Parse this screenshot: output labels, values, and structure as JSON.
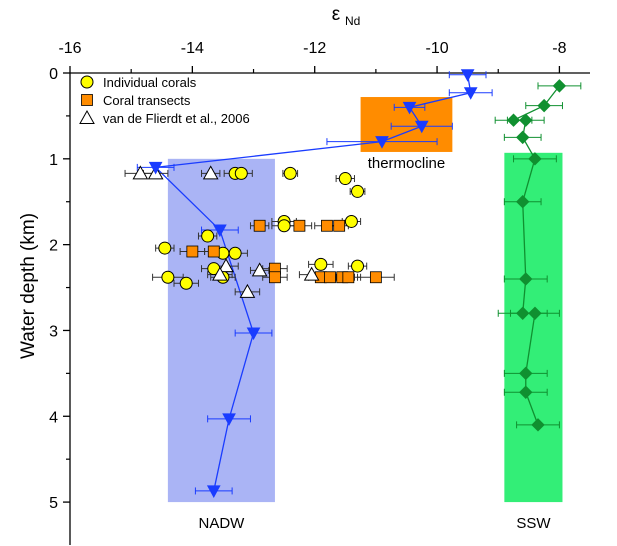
{
  "chart_data": {
    "type": "scatter",
    "x_title_symbol": "ε",
    "x_title_subscript": "Nd",
    "ylabel": "Water depth (km)",
    "xlim": [
      -16,
      -7.5
    ],
    "ylim": [
      0,
      5.5
    ],
    "x_ticks": [
      -16,
      -14,
      -12,
      -10,
      -8
    ],
    "y_ticks": [
      0,
      1,
      2,
      3,
      4,
      5
    ],
    "x_axis_position": "top",
    "y_axis_reversed": true,
    "grid": false,
    "legend_position": "top-left",
    "legend": [
      {
        "label": "Individual corals",
        "marker": "circle",
        "color": "#ffff00"
      },
      {
        "label": "Coral transects",
        "marker": "square",
        "color": "#ff8c00"
      },
      {
        "label": "van de Flierdt et al., 2006",
        "marker": "triangle",
        "color": "#ffffff"
      }
    ],
    "regions": [
      {
        "label": "NADW",
        "x": [
          -14.4,
          -12.65
        ],
        "y": [
          1.0,
          5.0
        ],
        "color": "#aab4f5"
      },
      {
        "label": "thermocline",
        "x": [
          -11.25,
          -9.75
        ],
        "y": [
          0.28,
          0.92
        ],
        "color": "#ff8c00"
      },
      {
        "label": "SSW",
        "x": [
          -8.9,
          -7.95
        ],
        "y": [
          0.93,
          5.0
        ],
        "color": "#33ee77"
      }
    ],
    "series": [
      {
        "marker": "circle",
        "color": "#ffff00",
        "points": [
          {
            "x": -13.3,
            "y": 1.17,
            "err": 0.18
          },
          {
            "x": -13.2,
            "y": 1.17,
            "err": 0.18
          },
          {
            "x": -12.4,
            "y": 1.17,
            "err": 0.12
          },
          {
            "x": -11.5,
            "y": 1.23,
            "err": 0.15
          },
          {
            "x": -11.3,
            "y": 1.38,
            "err": 0.12
          },
          {
            "x": -12.5,
            "y": 1.73,
            "err": 0.2
          },
          {
            "x": -12.5,
            "y": 1.78,
            "err": 0.2
          },
          {
            "x": -11.4,
            "y": 1.73,
            "err": 0.15
          },
          {
            "x": -13.75,
            "y": 1.9,
            "err": 0.15
          },
          {
            "x": -14.45,
            "y": 2.04,
            "err": 0.15
          },
          {
            "x": -13.5,
            "y": 2.1,
            "err": 0.2
          },
          {
            "x": -13.3,
            "y": 2.1,
            "err": 0.2
          },
          {
            "x": -13.65,
            "y": 2.28,
            "err": 0.2
          },
          {
            "x": -13.5,
            "y": 2.38,
            "err": 0.2
          },
          {
            "x": -14.4,
            "y": 2.38,
            "err": 0.25
          },
          {
            "x": -14.1,
            "y": 2.45,
            "err": 0.2
          },
          {
            "x": -11.9,
            "y": 2.23,
            "err": 0.2
          },
          {
            "x": -11.3,
            "y": 2.25,
            "err": 0.15
          }
        ]
      },
      {
        "marker": "square",
        "color": "#ff8c00",
        "points": [
          {
            "x": -12.9,
            "y": 1.78,
            "err": 0.15
          },
          {
            "x": -12.25,
            "y": 1.78,
            "err": 0.2
          },
          {
            "x": -11.8,
            "y": 1.78,
            "err": 0.2
          },
          {
            "x": -11.6,
            "y": 1.78,
            "err": 0.15
          },
          {
            "x": -14.0,
            "y": 2.08,
            "err": 0.2
          },
          {
            "x": -13.65,
            "y": 2.08,
            "err": 0.15
          },
          {
            "x": -12.65,
            "y": 2.28,
            "err": 0.2
          },
          {
            "x": -12.65,
            "y": 2.38,
            "err": 0.2
          },
          {
            "x": -11.9,
            "y": 2.38,
            "err": 0.2
          },
          {
            "x": -11.75,
            "y": 2.38,
            "err": 0.2
          },
          {
            "x": -11.55,
            "y": 2.38,
            "err": 0.2
          },
          {
            "x": -11.45,
            "y": 2.38,
            "err": 0.2
          },
          {
            "x": -11.0,
            "y": 2.38,
            "err": 0.3
          }
        ]
      },
      {
        "marker": "triangle",
        "color": "#ffffff",
        "points": [
          {
            "x": -14.85,
            "y": 1.17,
            "err": 0.25
          },
          {
            "x": -14.6,
            "y": 1.17,
            "err": 0.2
          },
          {
            "x": -13.7,
            "y": 1.17,
            "err": 0.15
          },
          {
            "x": -13.45,
            "y": 2.25,
            "err": 0.2
          },
          {
            "x": -13.55,
            "y": 2.35,
            "err": 0.2
          },
          {
            "x": -13.1,
            "y": 2.55,
            "err": 0.2
          },
          {
            "x": -12.9,
            "y": 2.3,
            "err": 0.15
          },
          {
            "x": -12.05,
            "y": 2.35,
            "err": 0.2
          }
        ]
      },
      {
        "marker": "inverted-triangle",
        "color": "#1a3cff",
        "connected": true,
        "points": [
          {
            "x": -9.5,
            "y": 0.02,
            "err": 0.3
          },
          {
            "x": -9.45,
            "y": 0.23,
            "err": 0.35
          },
          {
            "x": -10.45,
            "y": 0.4,
            "err": 0.25
          },
          {
            "x": -10.25,
            "y": 0.62,
            "err": 0.5
          },
          {
            "x": -10.9,
            "y": 0.8,
            "err": 0.9
          },
          {
            "x": -14.6,
            "y": 1.1,
            "err": 0.3
          },
          {
            "x": -13.55,
            "y": 1.83,
            "err": 0.3
          },
          {
            "x": -13.0,
            "y": 3.03,
            "err": 0.3
          },
          {
            "x": -13.4,
            "y": 4.03,
            "err": 0.35
          },
          {
            "x": -13.65,
            "y": 4.87,
            "err": 0.3
          }
        ]
      },
      {
        "marker": "diamond",
        "color": "#109030",
        "connected": true,
        "points": [
          {
            "x": -8.0,
            "y": 0.15,
            "err": 0.35
          },
          {
            "x": -8.25,
            "y": 0.38,
            "err": 0.3
          },
          {
            "x": -8.75,
            "y": 0.55,
            "err": 0.3
          },
          {
            "x": -8.55,
            "y": 0.55,
            "err": 0.3
          },
          {
            "x": -8.6,
            "y": 0.75,
            "err": 0.3
          },
          {
            "x": -8.4,
            "y": 1.0,
            "err": 0.35
          },
          {
            "x": -8.6,
            "y": 1.5,
            "err": 0.3
          },
          {
            "x": -8.55,
            "y": 2.4,
            "err": 0.35
          },
          {
            "x": -8.6,
            "y": 2.8,
            "err": 0.4
          },
          {
            "x": -8.4,
            "y": 2.8,
            "err": 0.4
          },
          {
            "x": -8.55,
            "y": 3.5,
            "err": 0.35
          },
          {
            "x": -8.55,
            "y": 3.72,
            "err": 0.35
          },
          {
            "x": -8.35,
            "y": 4.1,
            "err": 0.35
          }
        ]
      }
    ]
  }
}
